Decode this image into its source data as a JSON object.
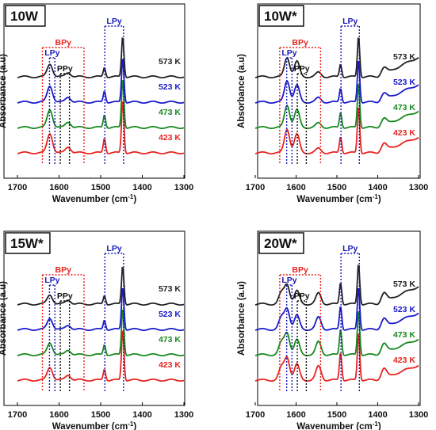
{
  "chart_data": [
    {
      "type": "line",
      "title": "10W",
      "xlabel": "Wavenumber (cm-1)",
      "ylabel": "Absorbance (a.u)",
      "xlim": [
        1700,
        1300
      ],
      "xticks": [
        1700,
        1600,
        1500,
        1400,
        1300
      ],
      "x_reversed": true,
      "y_ticks_shown": false,
      "annotations": [
        {
          "label": "BPy",
          "color": "#e8231f",
          "x_range": [
            1640,
            1540
          ]
        },
        {
          "label": "LPy",
          "color": "#1a1ab8",
          "x_range": [
            1623,
            1610
          ]
        },
        {
          "label": "PPy",
          "color": "#111111",
          "x_range": [
            1597,
            1575
          ]
        },
        {
          "label": "LPy",
          "color": "#1a1ab8",
          "x_range": [
            1490,
            1445
          ]
        }
      ],
      "series": [
        {
          "name": "573 K",
          "color": "#222222",
          "peaks": [
            {
              "x": 1622,
              "h": 0.3
            },
            {
              "x": 1578,
              "h": 0.1
            },
            {
              "x": 1491,
              "h": 0.22
            },
            {
              "x": 1447,
              "h": 0.95
            }
          ],
          "baseline": 0.0
        },
        {
          "name": "523 K",
          "color": "#1a1acc",
          "peaks": [
            {
              "x": 1622,
              "h": 0.38
            },
            {
              "x": 1578,
              "h": 0.12
            },
            {
              "x": 1491,
              "h": 0.26
            },
            {
              "x": 1447,
              "h": 1.05
            }
          ],
          "baseline": 0.0
        },
        {
          "name": "473 K",
          "color": "#16891e",
          "peaks": [
            {
              "x": 1622,
              "h": 0.42
            },
            {
              "x": 1578,
              "h": 0.13
            },
            {
              "x": 1491,
              "h": 0.3
            },
            {
              "x": 1447,
              "h": 1.15
            }
          ],
          "baseline": 0.0
        },
        {
          "name": "423 K",
          "color": "#e8231f",
          "peaks": [
            {
              "x": 1622,
              "h": 0.45
            },
            {
              "x": 1578,
              "h": 0.14
            },
            {
              "x": 1491,
              "h": 0.34
            },
            {
              "x": 1447,
              "h": 1.25
            }
          ],
          "baseline": 0.0
        }
      ]
    },
    {
      "type": "line",
      "title": "10W*",
      "xlabel": "Wavenumber (cm-1)",
      "ylabel": "Absorbance (a.u)",
      "xlim": [
        1700,
        1300
      ],
      "xticks": [
        1700,
        1600,
        1500,
        1400,
        1300
      ],
      "x_reversed": true,
      "y_ticks_shown": false,
      "annotations": [
        {
          "label": "BPy",
          "color": "#e8231f",
          "x_range": [
            1640,
            1540
          ]
        },
        {
          "label": "LPy",
          "color": "#1a1ab8",
          "x_range": [
            1623,
            1610
          ]
        },
        {
          "label": "PPy",
          "color": "#111111",
          "x_range": [
            1597,
            1575
          ]
        },
        {
          "label": "LPy",
          "color": "#1a1ab8",
          "x_range": [
            1490,
            1445
          ]
        }
      ],
      "series": [
        {
          "name": "573 K",
          "color": "#222222",
          "peaks": [
            {
              "x": 1622,
              "h": 0.45
            },
            {
              "x": 1598,
              "h": 0.35
            },
            {
              "x": 1545,
              "h": 0.1
            },
            {
              "x": 1491,
              "h": 0.3
            },
            {
              "x": 1447,
              "h": 0.95
            },
            {
              "x": 1385,
              "h": 0.15
            }
          ],
          "baseline": 0.0,
          "tail_rise": 0.5
        },
        {
          "name": "523 K",
          "color": "#1a1acc",
          "peaks": [
            {
              "x": 1622,
              "h": 0.5
            },
            {
              "x": 1598,
              "h": 0.38
            },
            {
              "x": 1545,
              "h": 0.1
            },
            {
              "x": 1491,
              "h": 0.33
            },
            {
              "x": 1447,
              "h": 1.0
            },
            {
              "x": 1385,
              "h": 0.15
            }
          ],
          "baseline": 0.0,
          "tail_rise": 0.45
        },
        {
          "name": "473 K",
          "color": "#16891e",
          "peaks": [
            {
              "x": 1622,
              "h": 0.52
            },
            {
              "x": 1598,
              "h": 0.4
            },
            {
              "x": 1545,
              "h": 0.1
            },
            {
              "x": 1491,
              "h": 0.35
            },
            {
              "x": 1447,
              "h": 1.05
            },
            {
              "x": 1385,
              "h": 0.16
            }
          ],
          "baseline": 0.0,
          "tail_rise": 0.42
        },
        {
          "name": "423 K",
          "color": "#e8231f",
          "peaks": [
            {
              "x": 1622,
              "h": 0.55
            },
            {
              "x": 1598,
              "h": 0.42
            },
            {
              "x": 1545,
              "h": 0.1
            },
            {
              "x": 1491,
              "h": 0.38
            },
            {
              "x": 1447,
              "h": 1.1
            },
            {
              "x": 1385,
              "h": 0.17
            }
          ],
          "baseline": 0.0,
          "tail_rise": 0.4
        }
      ]
    },
    {
      "type": "line",
      "title": "15W*",
      "xlabel": "Wavenumber (cm-1)",
      "ylabel": "Absorbance (a.u)",
      "xlim": [
        1700,
        1300
      ],
      "xticks": [
        1700,
        1600,
        1500,
        1400,
        1300
      ],
      "x_reversed": true,
      "y_ticks_shown": false,
      "annotations": [
        {
          "label": "BPy",
          "color": "#e8231f",
          "x_range": [
            1640,
            1540
          ]
        },
        {
          "label": "LPy",
          "color": "#1a1ab8",
          "x_range": [
            1623,
            1610
          ]
        },
        {
          "label": "PPy",
          "color": "#111111",
          "x_range": [
            1597,
            1575
          ]
        },
        {
          "label": "LPy",
          "color": "#1a1ab8",
          "x_range": [
            1490,
            1445
          ]
        }
      ],
      "series": [
        {
          "name": "573 K",
          "color": "#222222",
          "peaks": [
            {
              "x": 1622,
              "h": 0.22
            },
            {
              "x": 1578,
              "h": 0.1
            },
            {
              "x": 1491,
              "h": 0.2
            },
            {
              "x": 1447,
              "h": 0.9
            }
          ],
          "baseline": 0.0
        },
        {
          "name": "523 K",
          "color": "#1a1acc",
          "peaks": [
            {
              "x": 1622,
              "h": 0.26
            },
            {
              "x": 1578,
              "h": 0.1
            },
            {
              "x": 1491,
              "h": 0.22
            },
            {
              "x": 1447,
              "h": 1.0
            }
          ],
          "baseline": 0.0
        },
        {
          "name": "473 K",
          "color": "#16891e",
          "peaks": [
            {
              "x": 1622,
              "h": 0.28
            },
            {
              "x": 1578,
              "h": 0.11
            },
            {
              "x": 1491,
              "h": 0.24
            },
            {
              "x": 1447,
              "h": 1.1
            }
          ],
          "baseline": 0.0
        },
        {
          "name": "423 K",
          "color": "#e8231f",
          "peaks": [
            {
              "x": 1622,
              "h": 0.3
            },
            {
              "x": 1578,
              "h": 0.12
            },
            {
              "x": 1491,
              "h": 0.26
            },
            {
              "x": 1447,
              "h": 1.2
            }
          ],
          "baseline": 0.0
        }
      ]
    },
    {
      "type": "line",
      "title": "20W*",
      "xlabel": "Wavenumber (cm-1)",
      "ylabel": "Absorbance (a.u)",
      "xlim": [
        1700,
        1300
      ],
      "xticks": [
        1700,
        1600,
        1500,
        1400,
        1300
      ],
      "x_reversed": true,
      "y_ticks_shown": false,
      "annotations": [
        {
          "label": "BPy",
          "color": "#e8231f",
          "x_range": [
            1640,
            1540
          ]
        },
        {
          "label": "LPy",
          "color": "#1a1ab8",
          "x_range": [
            1623,
            1610
          ]
        },
        {
          "label": "PPy",
          "color": "#111111",
          "x_range": [
            1597,
            1575
          ]
        },
        {
          "label": "LPy",
          "color": "#1a1ab8",
          "x_range": [
            1490,
            1445
          ]
        }
      ],
      "series": [
        {
          "name": "573 K",
          "color": "#222222",
          "peaks": [
            {
              "x": 1636,
              "h": 0.25
            },
            {
              "x": 1622,
              "h": 0.45
            },
            {
              "x": 1598,
              "h": 0.3
            },
            {
              "x": 1545,
              "h": 0.25
            },
            {
              "x": 1491,
              "h": 0.5
            },
            {
              "x": 1447,
              "h": 0.95
            },
            {
              "x": 1385,
              "h": 0.2
            }
          ],
          "baseline": 0.0,
          "tail_rise": 0.45
        },
        {
          "name": "523 K",
          "color": "#1a1acc",
          "peaks": [
            {
              "x": 1636,
              "h": 0.26
            },
            {
              "x": 1622,
              "h": 0.48
            },
            {
              "x": 1598,
              "h": 0.32
            },
            {
              "x": 1545,
              "h": 0.28
            },
            {
              "x": 1491,
              "h": 0.55
            },
            {
              "x": 1447,
              "h": 1.0
            },
            {
              "x": 1385,
              "h": 0.2
            }
          ],
          "baseline": 0.0,
          "tail_rise": 0.42
        },
        {
          "name": "473 K",
          "color": "#16891e",
          "peaks": [
            {
              "x": 1636,
              "h": 0.27
            },
            {
              "x": 1622,
              "h": 0.5
            },
            {
              "x": 1598,
              "h": 0.34
            },
            {
              "x": 1545,
              "h": 0.3
            },
            {
              "x": 1491,
              "h": 0.6
            },
            {
              "x": 1447,
              "h": 1.05
            },
            {
              "x": 1385,
              "h": 0.21
            }
          ],
          "baseline": 0.0,
          "tail_rise": 0.4
        },
        {
          "name": "423 K",
          "color": "#e8231f",
          "peaks": [
            {
              "x": 1636,
              "h": 0.28
            },
            {
              "x": 1622,
              "h": 0.52
            },
            {
              "x": 1598,
              "h": 0.36
            },
            {
              "x": 1545,
              "h": 0.32
            },
            {
              "x": 1491,
              "h": 0.65
            },
            {
              "x": 1447,
              "h": 1.12
            },
            {
              "x": 1385,
              "h": 0.22
            }
          ],
          "baseline": 0.0,
          "tail_rise": 0.38
        }
      ]
    }
  ],
  "axis_label_x_base": "Wavenumber (cm",
  "axis_label_x_sup": "-1",
  "axis_label_x_end": ")"
}
